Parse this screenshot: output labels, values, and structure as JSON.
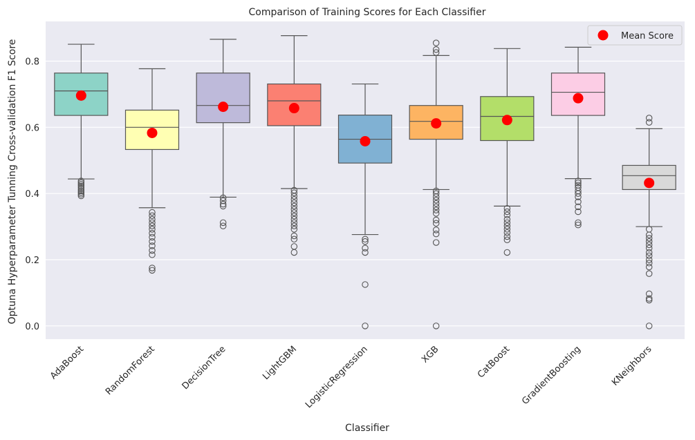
{
  "chart_data": {
    "type": "box",
    "title": "Comparison of Training Scores for Each Classifier",
    "xlabel": "Classifier",
    "ylabel": "Optuna Hyperparameter Tunning Cross-validation F1 Score",
    "ylim": [
      -0.04,
      0.92
    ],
    "yticks": [
      "0.0",
      "0.2",
      "0.4",
      "0.6",
      "0.8"
    ],
    "grid": true,
    "legend": {
      "position": "top-right",
      "label": "Mean Score",
      "color": "#ff0000"
    },
    "categories": [
      "AdaBoost",
      "RandomForest",
      "DecisionTree",
      "LightGBM",
      "LogisticRegression",
      "XGB",
      "CatBoost",
      "GradientBoosting",
      "KNeighbors"
    ],
    "colors": [
      "#8dd3c7",
      "#ffffb3",
      "#bebada",
      "#fb8072",
      "#80b1d3",
      "#fdb462",
      "#b3de69",
      "#fccde5",
      "#d9d9d9"
    ],
    "boxes": [
      {
        "whislo": 0.444,
        "q1": 0.636,
        "med": 0.71,
        "q3": 0.764,
        "whishi": 0.851,
        "mean": 0.696,
        "fliers": [
          0.393,
          0.398,
          0.403,
          0.408,
          0.413,
          0.418,
          0.423,
          0.428,
          0.433,
          0.438
        ]
      },
      {
        "whislo": 0.357,
        "q1": 0.533,
        "med": 0.6,
        "q3": 0.652,
        "whishi": 0.777,
        "mean": 0.583,
        "fliers": [
          0.168,
          0.175,
          0.215,
          0.228,
          0.242,
          0.255,
          0.268,
          0.28,
          0.292,
          0.302,
          0.312,
          0.322,
          0.333,
          0.343
        ]
      },
      {
        "whislo": 0.389,
        "q1": 0.614,
        "med": 0.666,
        "q3": 0.764,
        "whishi": 0.866,
        "mean": 0.662,
        "fliers": [
          0.302,
          0.312,
          0.362,
          0.368,
          0.378,
          0.387
        ]
      },
      {
        "whislo": 0.415,
        "q1": 0.605,
        "med": 0.68,
        "q3": 0.731,
        "whishi": 0.877,
        "mean": 0.658,
        "fliers": [
          0.222,
          0.24,
          0.262,
          0.272,
          0.292,
          0.302,
          0.312,
          0.322,
          0.332,
          0.342,
          0.352,
          0.362,
          0.372,
          0.382,
          0.392,
          0.402,
          0.41
        ]
      },
      {
        "whislo": 0.276,
        "q1": 0.492,
        "med": 0.564,
        "q3": 0.637,
        "whishi": 0.731,
        "mean": 0.558,
        "fliers": [
          0.0,
          0.125,
          0.222,
          0.235,
          0.255,
          0.262
        ]
      },
      {
        "whislo": 0.412,
        "q1": 0.564,
        "med": 0.618,
        "q3": 0.666,
        "whishi": 0.817,
        "mean": 0.612,
        "fliers": [
          0.0,
          0.252,
          0.278,
          0.29,
          0.31,
          0.32,
          0.34,
          0.35,
          0.36,
          0.37,
          0.38,
          0.39,
          0.4,
          0.408,
          0.826,
          0.835,
          0.855
        ]
      },
      {
        "whislo": 0.362,
        "q1": 0.56,
        "med": 0.633,
        "q3": 0.693,
        "whishi": 0.838,
        "mean": 0.622,
        "fliers": [
          0.222,
          0.26,
          0.27,
          0.282,
          0.292,
          0.302,
          0.312,
          0.322,
          0.335,
          0.345,
          0.355
        ]
      },
      {
        "whislo": 0.445,
        "q1": 0.636,
        "med": 0.706,
        "q3": 0.764,
        "whishi": 0.842,
        "mean": 0.688,
        "fliers": [
          0.305,
          0.312,
          0.345,
          0.36,
          0.375,
          0.39,
          0.4,
          0.408,
          0.418,
          0.425,
          0.432,
          0.438
        ]
      },
      {
        "whislo": 0.3,
        "q1": 0.412,
        "med": 0.454,
        "q3": 0.485,
        "whishi": 0.596,
        "mean": 0.432,
        "fliers": [
          0.0,
          0.078,
          0.083,
          0.097,
          0.158,
          0.178,
          0.19,
          0.2,
          0.212,
          0.222,
          0.235,
          0.245,
          0.255,
          0.265,
          0.275,
          0.292,
          0.615,
          0.628
        ]
      }
    ]
  }
}
